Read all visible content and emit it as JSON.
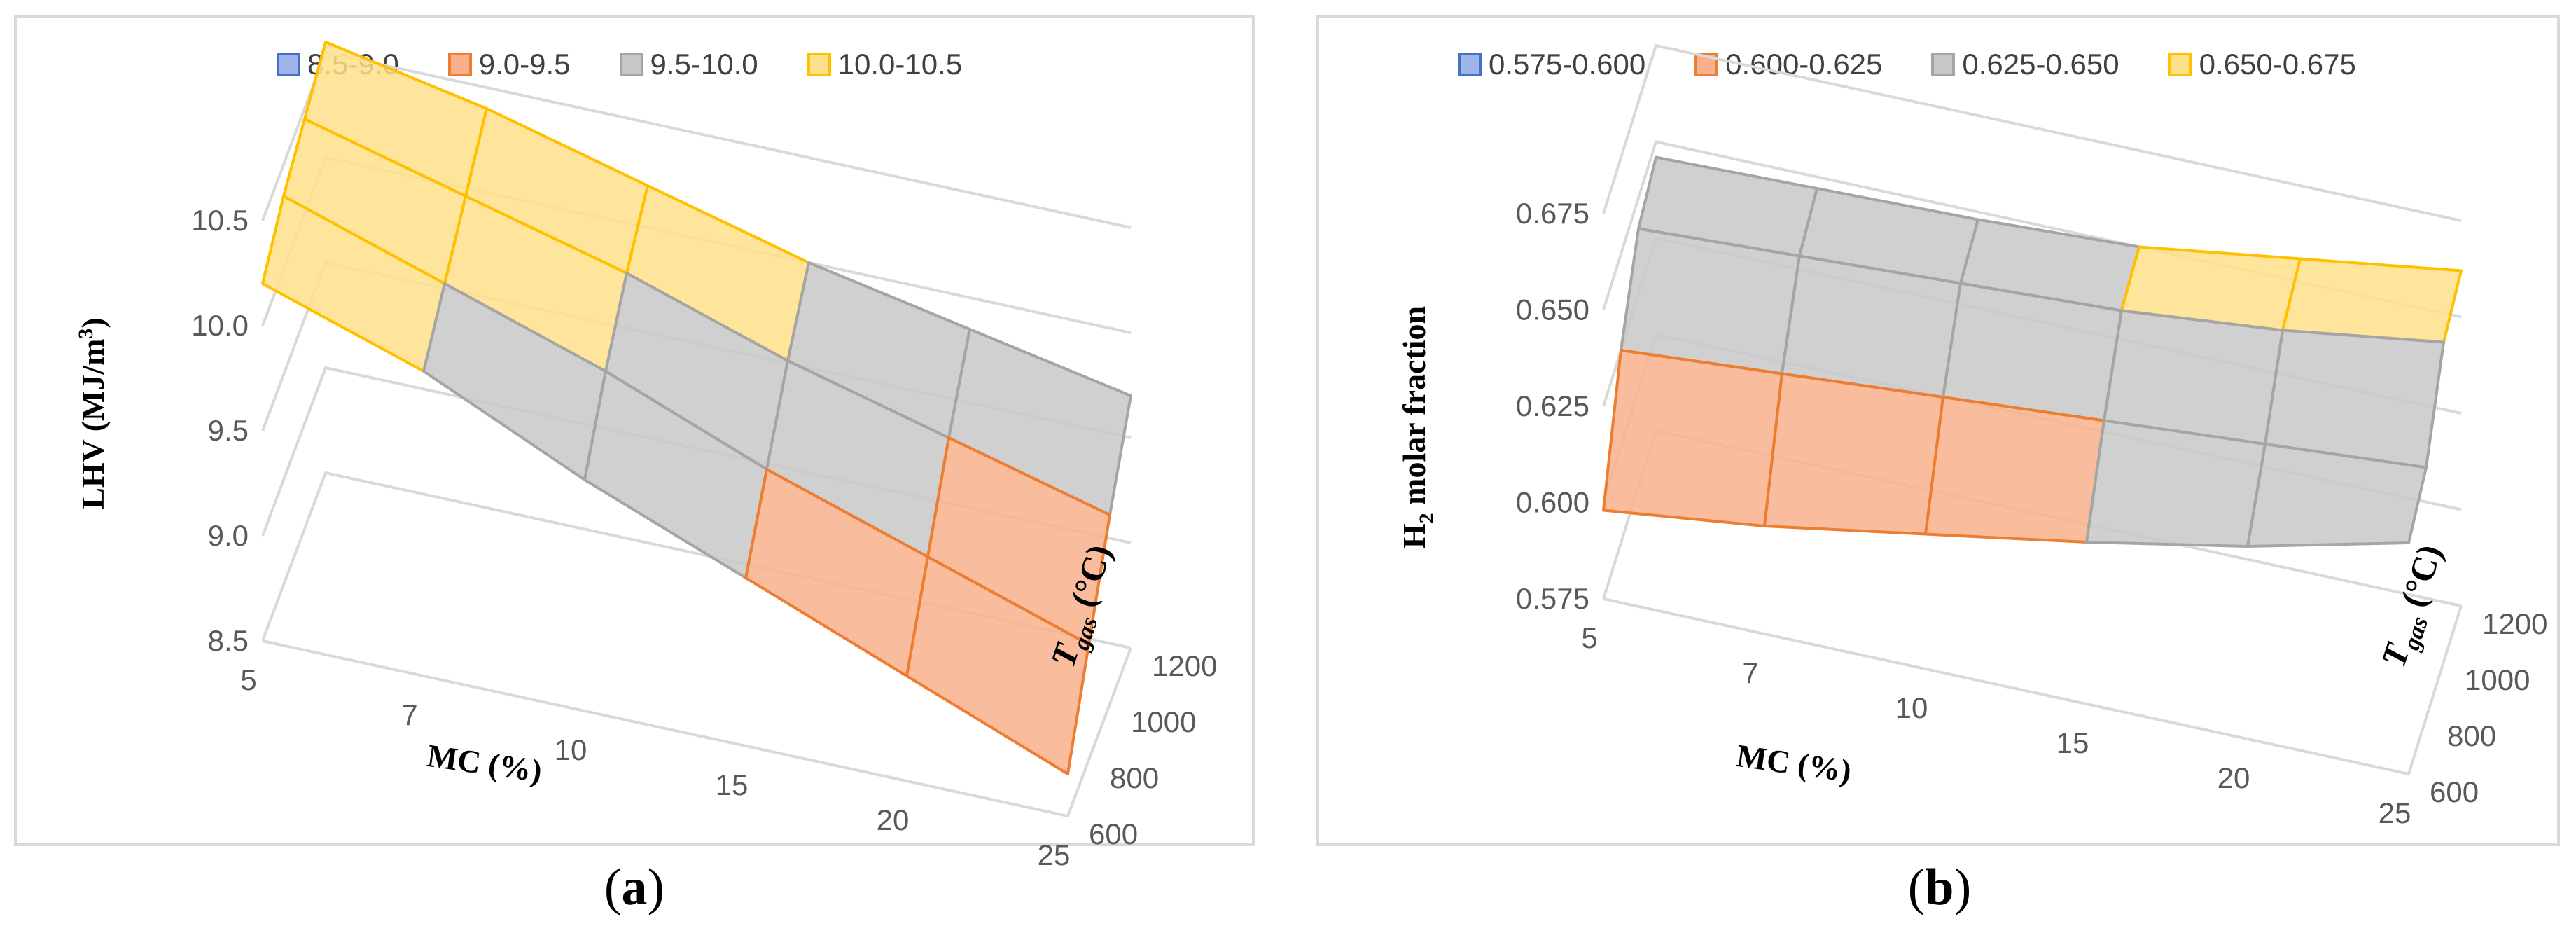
{
  "panels": [
    {
      "caption": "a",
      "legend": [
        {
          "label": "8.5-9.0",
          "fill": "#9db5e8",
          "stroke": "#4472c4"
        },
        {
          "label": "9.0-9.5",
          "fill": "#f8b08c",
          "stroke": "#ed7d31"
        },
        {
          "label": "9.5-10.0",
          "fill": "#c8c8c8",
          "stroke": "#a5a5a5"
        },
        {
          "label": "10.0-10.5",
          "fill": "#ffe08a",
          "stroke": "#ffc000"
        }
      ],
      "ylabel_prefix": "LHV (MJ/m",
      "ylabel_sup": "3",
      "ylabel_suffix": ")",
      "xlabel": "MC (%)",
      "zlabel_main": "T",
      "zlabel_sub": "gas",
      "zlabel_unit": " (°C)"
    },
    {
      "caption": "b",
      "legend": [
        {
          "label": "0.575-0.600",
          "fill": "#9db5e8",
          "stroke": "#4472c4"
        },
        {
          "label": "0.600-0.625",
          "fill": "#f8b08c",
          "stroke": "#ed7d31"
        },
        {
          "label": "0.625-0.650",
          "fill": "#c8c8c8",
          "stroke": "#a5a5a5"
        },
        {
          "label": "0.650-0.675",
          "fill": "#ffe08a",
          "stroke": "#ffc000"
        }
      ],
      "ylabel_prefix": "H",
      "ylabel_sub": "2",
      "ylabel_suffix": " molar fraction",
      "xlabel": "MC (%)",
      "zlabel_main": "T",
      "zlabel_sub": "gas",
      "zlabel_unit": " (°C)"
    }
  ],
  "chart_data": [
    {
      "type": "surface",
      "title": "",
      "x_values": [
        5,
        7,
        10,
        15,
        20,
        25
      ],
      "z_values": [
        600,
        800,
        1000,
        1200
      ],
      "xlabel": "MC (%)",
      "ylabel": "LHV (MJ/m3)",
      "zlabel": "Tgas (°C)",
      "ylim": [
        8.5,
        10.5
      ],
      "yticks": [
        "8.5",
        "9.0",
        "9.5",
        "10.0",
        "10.5"
      ],
      "xticks": [
        "5",
        "7",
        "10",
        "15",
        "20",
        "25"
      ],
      "zticks": [
        "600",
        "800",
        "1000",
        "1200"
      ],
      "values": [
        [
          10.2,
          9.95,
          9.6,
          9.3,
          9.0,
          8.7
        ],
        [
          10.35,
          10.1,
          9.85,
          9.55,
          9.3,
          9.05
        ],
        [
          10.45,
          10.25,
          10.05,
          9.8,
          9.6,
          9.4
        ],
        [
          10.55,
          10.4,
          10.2,
          10.0,
          9.85,
          9.7
        ]
      ],
      "bands": [
        "8.5-9.0",
        "9.0-9.5",
        "9.5-10.0",
        "10.0-10.5"
      ]
    },
    {
      "type": "surface",
      "title": "",
      "x_values": [
        5,
        7,
        10,
        15,
        20,
        25
      ],
      "z_values": [
        600,
        800,
        1000,
        1200
      ],
      "xlabel": "MC (%)",
      "ylabel": "H2 molar fraction",
      "zlabel": "Tgas (°C)",
      "ylim": [
        0.575,
        0.675
      ],
      "yticks": [
        "0.575",
        "0.600",
        "0.625",
        "0.650",
        "0.675"
      ],
      "xticks": [
        "5",
        "7",
        "10",
        "15",
        "20",
        "25"
      ],
      "zticks": [
        "600",
        "800",
        "1000",
        "1200"
      ],
      "values": [
        [
          0.598,
          0.603,
          0.61,
          0.617,
          0.625,
          0.635
        ],
        [
          0.625,
          0.628,
          0.631,
          0.634,
          0.637,
          0.64
        ],
        [
          0.642,
          0.644,
          0.646,
          0.648,
          0.652,
          0.658
        ],
        [
          0.646,
          0.647,
          0.648,
          0.65,
          0.656,
          0.662
        ]
      ],
      "bands": [
        "0.575-0.600",
        "0.600-0.625",
        "0.625-0.650",
        "0.650-0.675"
      ]
    }
  ]
}
